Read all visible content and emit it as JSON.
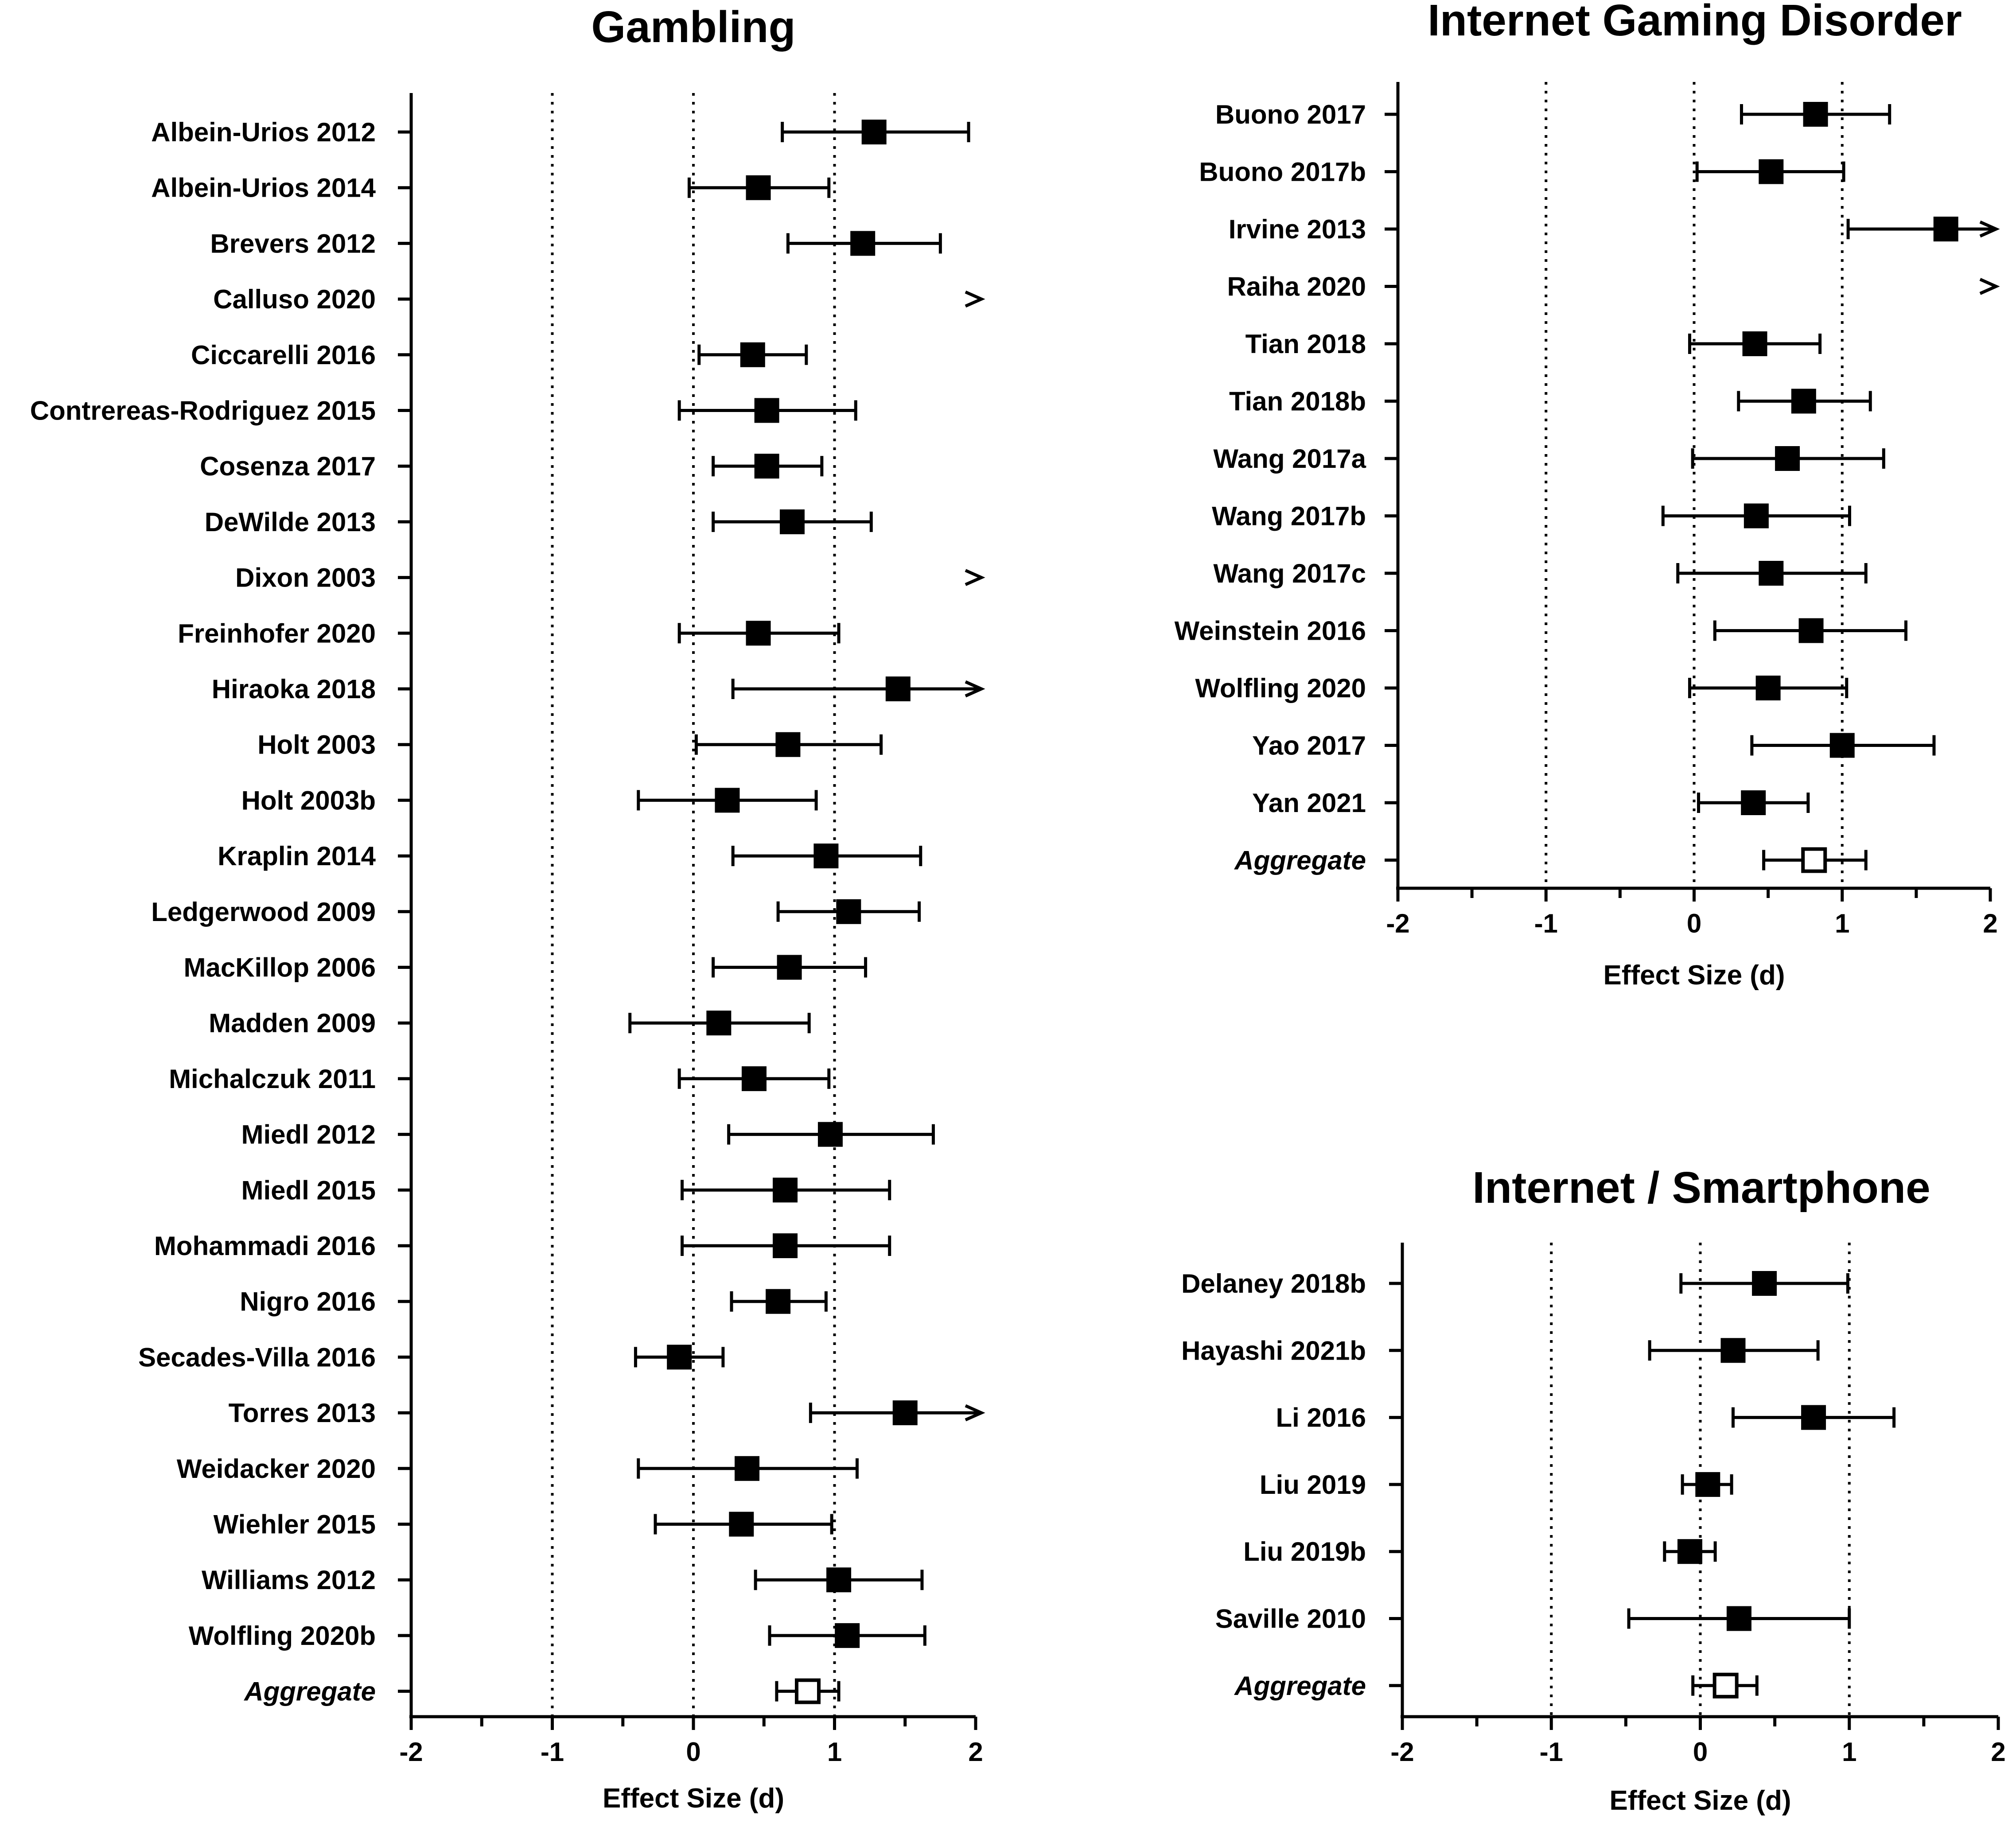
{
  "chart_data": [
    {
      "type": "forest",
      "title": "Gambling",
      "xlabel": "Effect Size (d)",
      "xlim": [
        -2,
        2
      ],
      "xticks": [
        -2,
        -1,
        0,
        1,
        2
      ],
      "reference_lines": [
        -1,
        0,
        1
      ],
      "studies": [
        {
          "label": "Albein-Urios 2012",
          "est": 1.28,
          "lo": 0.63,
          "hi": 1.95
        },
        {
          "label": "Albein-Urios 2014",
          "est": 0.46,
          "lo": -0.03,
          "hi": 0.96
        },
        {
          "label": "Brevers 2012",
          "est": 1.2,
          "lo": 0.67,
          "hi": 1.75
        },
        {
          "label": "Calluso 2020",
          "est": null,
          "lo": null,
          "hi": null,
          "off_scale": true
        },
        {
          "label": "Ciccarelli 2016",
          "est": 0.42,
          "lo": 0.04,
          "hi": 0.8
        },
        {
          "label": "Contrereas-Rodriguez 2015",
          "est": 0.52,
          "lo": -0.1,
          "hi": 1.15
        },
        {
          "label": "Cosenza 2017",
          "est": 0.52,
          "lo": 0.14,
          "hi": 0.91
        },
        {
          "label": "DeWilde 2013",
          "est": 0.7,
          "lo": 0.14,
          "hi": 1.26
        },
        {
          "label": "Dixon 2003",
          "est": null,
          "lo": null,
          "hi": null,
          "off_scale": true
        },
        {
          "label": "Freinhofer 2020",
          "est": 0.46,
          "lo": -0.1,
          "hi": 1.03
        },
        {
          "label": "Hiraoka 2018",
          "est": 1.45,
          "lo": 0.28,
          "hi": 2.0,
          "off_scale": true
        },
        {
          "label": "Holt 2003",
          "est": 0.67,
          "lo": 0.02,
          "hi": 1.33
        },
        {
          "label": "Holt 2003b",
          "est": 0.24,
          "lo": -0.39,
          "hi": 0.87
        },
        {
          "label": "Kraplin 2014",
          "est": 0.94,
          "lo": 0.28,
          "hi": 1.61
        },
        {
          "label": "Ledgerwood 2009",
          "est": 1.1,
          "lo": 0.6,
          "hi": 1.6
        },
        {
          "label": "MacKillop 2006",
          "est": 0.68,
          "lo": 0.14,
          "hi": 1.22
        },
        {
          "label": "Madden 2009",
          "est": 0.18,
          "lo": -0.45,
          "hi": 0.82
        },
        {
          "label": "Michalczuk 2011",
          "est": 0.43,
          "lo": -0.1,
          "hi": 0.96
        },
        {
          "label": "Miedl 2012",
          "est": 0.97,
          "lo": 0.25,
          "hi": 1.7
        },
        {
          "label": "Miedl 2015",
          "est": 0.65,
          "lo": -0.08,
          "hi": 1.39
        },
        {
          "label": "Mohammadi 2016",
          "est": 0.65,
          "lo": -0.08,
          "hi": 1.39
        },
        {
          "label": "Nigro 2016",
          "est": 0.6,
          "lo": 0.27,
          "hi": 0.94
        },
        {
          "label": "Secades-Villa 2016",
          "est": -0.1,
          "lo": -0.41,
          "hi": 0.21
        },
        {
          "label": "Torres 2013",
          "est": 1.5,
          "lo": 0.83,
          "hi": 2.0,
          "off_scale": true
        },
        {
          "label": "Weidacker 2020",
          "est": 0.38,
          "lo": -0.39,
          "hi": 1.16
        },
        {
          "label": "Wiehler 2015",
          "est": 0.34,
          "lo": -0.27,
          "hi": 0.98
        },
        {
          "label": "Williams 2012",
          "est": 1.03,
          "lo": 0.44,
          "hi": 1.62
        },
        {
          "label": "Wolfling 2020b",
          "est": 1.09,
          "lo": 0.54,
          "hi": 1.64
        }
      ],
      "aggregate": {
        "label": "Aggregate",
        "est": 0.81,
        "lo": 0.59,
        "hi": 1.03
      }
    },
    {
      "type": "forest",
      "title": "Internet Gaming Disorder",
      "xlabel": "Effect Size (d)",
      "xlim": [
        -2,
        2
      ],
      "xticks": [
        -2,
        -1,
        0,
        1,
        2
      ],
      "reference_lines": [
        -1,
        0,
        1
      ],
      "studies": [
        {
          "label": "Buono 2017",
          "est": 0.82,
          "lo": 0.32,
          "hi": 1.32
        },
        {
          "label": "Buono 2017b",
          "est": 0.52,
          "lo": 0.02,
          "hi": 1.01
        },
        {
          "label": "Irvine 2013",
          "est": 1.7,
          "lo": 1.04,
          "hi": 2.0,
          "off_scale": true
        },
        {
          "label": "Raiha 2020",
          "est": null,
          "lo": null,
          "hi": null,
          "off_scale": true
        },
        {
          "label": "Tian 2018",
          "est": 0.41,
          "lo": -0.03,
          "hi": 0.85
        },
        {
          "label": "Tian 2018b",
          "est": 0.74,
          "lo": 0.3,
          "hi": 1.19
        },
        {
          "label": "Wang 2017a",
          "est": 0.63,
          "lo": -0.01,
          "hi": 1.28
        },
        {
          "label": "Wang 2017b",
          "est": 0.42,
          "lo": -0.21,
          "hi": 1.05
        },
        {
          "label": "Wang 2017c",
          "est": 0.52,
          "lo": -0.11,
          "hi": 1.16
        },
        {
          "label": "Weinstein 2016",
          "est": 0.79,
          "lo": 0.14,
          "hi": 1.43
        },
        {
          "label": "Wolfling 2020",
          "est": 0.5,
          "lo": -0.03,
          "hi": 1.03
        },
        {
          "label": "Yao 2017",
          "est": 1.0,
          "lo": 0.39,
          "hi": 1.62
        },
        {
          "label": "Yan 2021",
          "est": 0.4,
          "lo": 0.03,
          "hi": 0.77
        }
      ],
      "aggregate": {
        "label": "Aggregate",
        "est": 0.81,
        "lo": 0.47,
        "hi": 1.16
      }
    },
    {
      "type": "forest",
      "title": "Internet / Smartphone",
      "xlabel": "Effect Size (d)",
      "xlim": [
        -2,
        2
      ],
      "xticks": [
        -2,
        -1,
        0,
        1,
        2
      ],
      "reference_lines": [
        -1,
        0,
        1
      ],
      "studies": [
        {
          "label": "Delaney 2018b",
          "est": 0.43,
          "lo": -0.13,
          "hi": 0.99
        },
        {
          "label": "Hayashi 2021b",
          "est": 0.22,
          "lo": -0.34,
          "hi": 0.79
        },
        {
          "label": "Li 2016",
          "est": 0.76,
          "lo": 0.22,
          "hi": 1.3
        },
        {
          "label": "Liu 2019",
          "est": 0.05,
          "lo": -0.12,
          "hi": 0.21
        },
        {
          "label": "Liu 2019b",
          "est": -0.07,
          "lo": -0.24,
          "hi": 0.1
        },
        {
          "label": "Saville 2010",
          "est": 0.26,
          "lo": -0.48,
          "hi": 1.0
        }
      ],
      "aggregate": {
        "label": "Aggregate",
        "est": 0.17,
        "lo": -0.05,
        "hi": 0.38
      }
    }
  ]
}
